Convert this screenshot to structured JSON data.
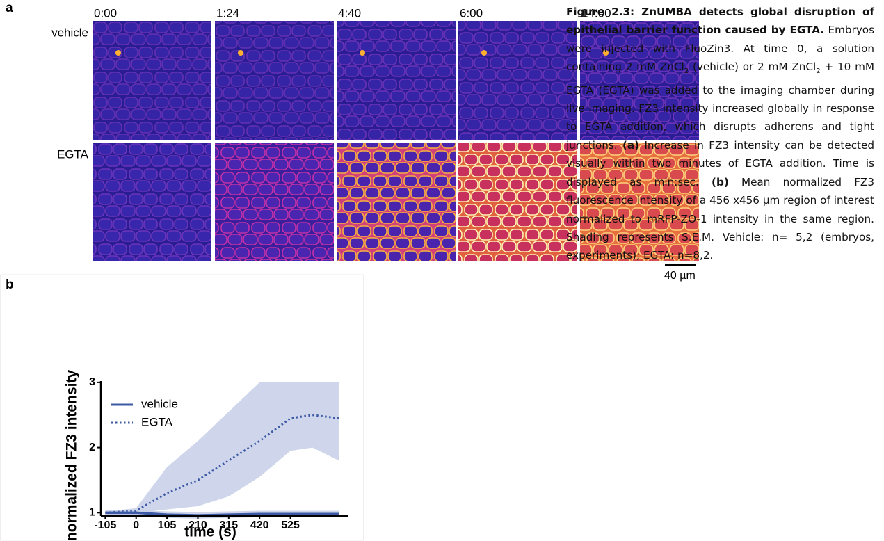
{
  "figure": {
    "panel_a": {
      "label": "a",
      "times": [
        "0:00",
        "1:24",
        "4:40",
        "6:00",
        "14:00"
      ],
      "rows": [
        "vehicle",
        "EGTA"
      ],
      "scale_bar": "40 µm"
    },
    "panel_b": {
      "label": "b"
    },
    "caption": {
      "title": "Figure 2.3: ZnUMBA detects global disruption of epithelial barrier function caused by EGTA.",
      "body": [
        " Embryos were injected with FluoZin3. At time 0, a solution containing 2 mM ZnCl",
        "2",
        " (vehicle) or 2 mM ZnCl",
        "2",
        " + 10 mM EGTA (EGTA) was added to the imaging chamber during live imaging. FZ3 intensity increased globally in response to EGTA addition, which disrupts adherens and tight junctions. ",
        "(a)",
        " Increase in FZ3 intensity can be detected visually within two minutes of EGTA addition. Time is displayed as min:sec. ",
        "(b)",
        " Mean normalized FZ3 fluorescence intensity of a 456 x456 µm region of interest normalized to mRFP-ZO-1 intensity in the same region. Shading represents S.E.M. Vehicle: n= 5,2 (embryos, experiments); EGTA: n=8,2."
      ]
    }
  },
  "chart_data": {
    "type": "line",
    "x_label": "time (s)",
    "y_label": "normalized FZ3 intensity",
    "x": [
      -105,
      0,
      105,
      210,
      315,
      420,
      525,
      600,
      690
    ],
    "xlim": [
      -120,
      720
    ],
    "xticks": [
      -105,
      0,
      105,
      210,
      315,
      420,
      525
    ],
    "ylim": [
      0.95,
      3.02
    ],
    "yticks": [
      1,
      2,
      3
    ],
    "series": [
      {
        "name": "vehicle",
        "color": "#3d5aa6",
        "dash": "solid",
        "values": [
          1.0,
          1.0,
          0.97,
          0.96,
          0.97,
          0.98,
          0.98,
          0.98,
          0.98
        ],
        "upper": [
          1.04,
          1.04,
          1.02,
          1.01,
          1.02,
          1.03,
          1.03,
          1.03,
          1.03
        ],
        "lower": [
          0.96,
          0.96,
          0.92,
          0.91,
          0.92,
          0.93,
          0.93,
          0.93,
          0.93
        ]
      },
      {
        "name": "EGTA",
        "color": "#3d5aa6",
        "dash": "dotted",
        "values": [
          1.0,
          1.03,
          1.3,
          1.5,
          1.8,
          2.1,
          2.45,
          2.5,
          2.45
        ],
        "upper": [
          1.02,
          1.07,
          1.7,
          2.1,
          2.55,
          3.0,
          3.0,
          3.0,
          3.0
        ],
        "lower": [
          0.98,
          1.0,
          1.05,
          1.1,
          1.25,
          1.55,
          1.95,
          2.0,
          1.8
        ]
      }
    ],
    "band_color": "#c7cfe7"
  }
}
